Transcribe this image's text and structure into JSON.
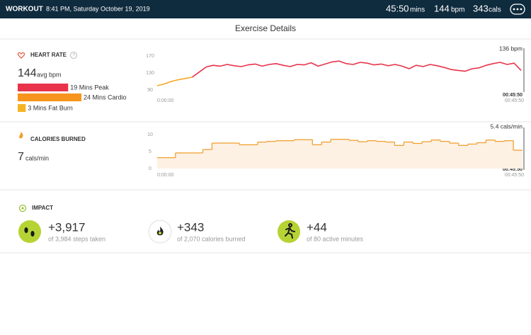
{
  "header": {
    "title": "WORKOUT",
    "datetime": "8:41 PM, Saturday October 19, 2019",
    "stats": [
      {
        "value": "45:50",
        "unit": "mins"
      },
      {
        "value": "144",
        "unit": "bpm"
      },
      {
        "value": "343",
        "unit": "cals"
      }
    ]
  },
  "page_title": "Exercise Details",
  "heart_rate": {
    "title": "HEART RATE",
    "help": "?",
    "average": "144",
    "average_unit": "avg bpm",
    "zones": [
      {
        "label": "19 Mins Peak",
        "minutes": 19,
        "color": "#e8334a"
      },
      {
        "label": "24 Mins Cardio",
        "minutes": 24,
        "color": "#f7941d"
      },
      {
        "label": "3 Mins Fat Burn",
        "minutes": 3,
        "color": "#f5b324"
      }
    ],
    "chart": {
      "type": "line",
      "ylim": [
        80,
        185
      ],
      "yticks": [
        170,
        130,
        90
      ],
      "x_start_label": "0:00:00",
      "x_end_label": "00:45:50",
      "cursor_label": "00:45:50",
      "current_label": "136 bpm",
      "series": [
        {
          "color": "#f5a623",
          "values": [
            100,
            104,
            110,
            114,
            117,
            120,
            null,
            null,
            null,
            null,
            null,
            null,
            null,
            null,
            null,
            null,
            null,
            null,
            null,
            null,
            null,
            null,
            null,
            null,
            null,
            null,
            null,
            null,
            null,
            null,
            null,
            null,
            null,
            null,
            null,
            null,
            null,
            null,
            null,
            null,
            null,
            null,
            null,
            null,
            null,
            null,
            null,
            null,
            null,
            null,
            null,
            null,
            null
          ]
        },
        {
          "color": "#e8334a",
          "values": [
            null,
            null,
            null,
            null,
            null,
            120,
            132,
            144,
            148,
            146,
            150,
            147,
            145,
            149,
            151,
            146,
            150,
            152,
            148,
            145,
            150,
            149,
            154,
            146,
            151,
            156,
            158,
            152,
            150,
            155,
            153,
            149,
            151,
            147,
            150,
            146,
            140,
            148,
            145,
            150,
            147,
            143,
            138,
            136,
            134,
            140,
            142,
            148,
            152,
            155,
            150,
            153,
            136
          ]
        }
      ]
    }
  },
  "calories": {
    "title": "CALORIES BURNED",
    "average": "7",
    "average_unit": "cals/min",
    "chart": {
      "type": "step",
      "color": "#f0a030",
      "fill": "#fdf1e4",
      "ylim": [
        0,
        12
      ],
      "yticks": [
        10,
        5,
        0
      ],
      "x_start_label": "0:00:00",
      "x_end_label": "00:45:50",
      "cursor_label": "00:45:50",
      "current_label": "5.4 cals/min",
      "values": [
        3.2,
        3.2,
        4.6,
        4.6,
        4.6,
        5.6,
        7.5,
        7.5,
        7.5,
        7.0,
        7.0,
        7.8,
        8.0,
        8.2,
        8.2,
        8.5,
        8.5,
        7.0,
        7.8,
        8.6,
        8.6,
        8.3,
        7.9,
        8.2,
        8.0,
        7.8,
        6.8,
        7.8,
        7.4,
        7.9,
        8.4,
        8.0,
        7.5,
        6.8,
        7.2,
        7.6,
        8.4,
        8.0,
        8.2,
        5.4
      ]
    }
  },
  "impact": {
    "title": "IMPACT",
    "items": [
      {
        "value": "+3,917",
        "detail": "of 3,984 steps taken"
      },
      {
        "value": "+343",
        "detail": "of 2,070 calories burned"
      },
      {
        "value": "+44",
        "detail": "of 80 active minutes"
      }
    ]
  }
}
